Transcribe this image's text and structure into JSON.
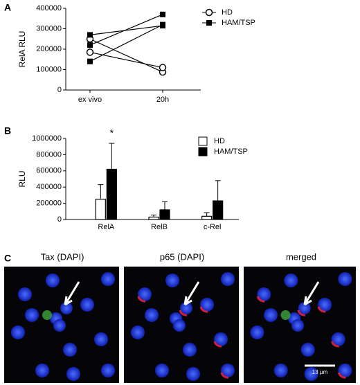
{
  "chart_data": [
    {
      "type": "paired-line",
      "panel_label": "A",
      "ylabel": "RelA RLU",
      "categories": [
        "ex vivo",
        "20h"
      ],
      "series": [
        {
          "name": "HD",
          "color": "#000000",
          "marker": "circle",
          "values": [
            [
              250000,
              88000
            ],
            [
              185000,
              110000
            ]
          ]
        },
        {
          "name": "HAM/TSP",
          "color": "#000000",
          "marker": "square",
          "values": [
            [
              270000,
              315000
            ],
            [
              220000,
              370000
            ],
            [
              140000,
              320000
            ]
          ]
        }
      ],
      "ylim": [
        0,
        400000
      ],
      "yticks": [
        0,
        100000,
        200000,
        300000,
        400000
      ]
    },
    {
      "type": "bar",
      "panel_label": "B",
      "ylabel": "RLU",
      "annotation": "*",
      "categories": [
        "RelA",
        "RelB",
        "c-Rel"
      ],
      "series": [
        {
          "name": "HD",
          "color": "#ffffff",
          "values": [
            250000,
            30000,
            40000
          ],
          "errors": [
            180000,
            25000,
            45000
          ]
        },
        {
          "name": "HAM/TSP",
          "color": "#000000",
          "values": [
            620000,
            120000,
            230000
          ],
          "errors": [
            320000,
            100000,
            250000
          ]
        }
      ],
      "ylim": [
        0,
        1000000
      ],
      "yticks": [
        0,
        200000,
        400000,
        600000,
        800000,
        1000000
      ]
    }
  ],
  "panel_c": {
    "label": "C",
    "images": [
      "Tax (DAPI)",
      "p65 (DAPI)",
      "merged"
    ],
    "scale_bar": "13 μm"
  }
}
